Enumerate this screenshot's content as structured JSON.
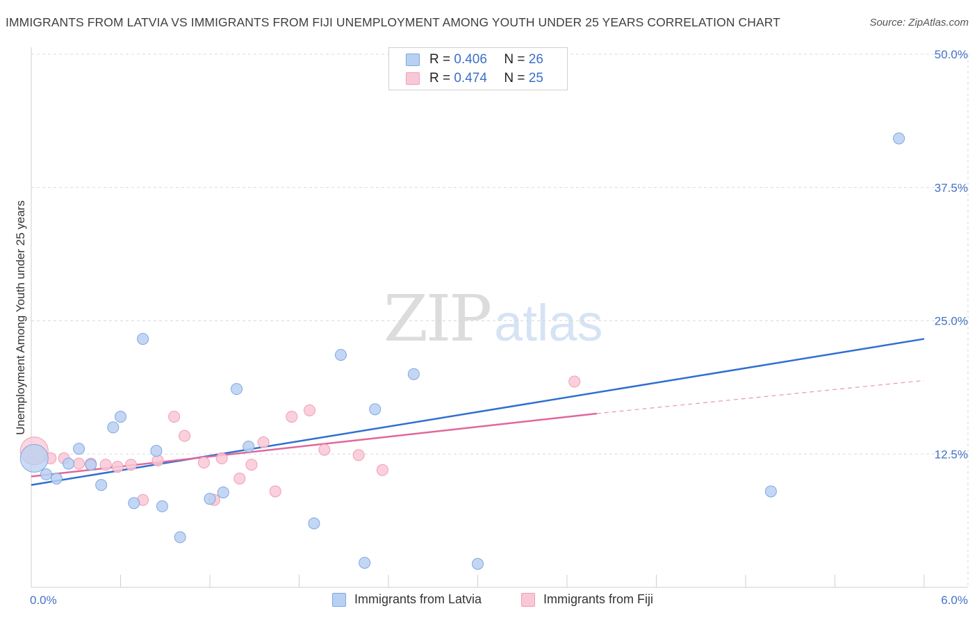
{
  "title": "IMMIGRANTS FROM LATVIA VS IMMIGRANTS FROM FIJI UNEMPLOYMENT AMONG YOUTH UNDER 25 YEARS CORRELATION CHART",
  "source": "Source: ZipAtlas.com",
  "watermark": {
    "zip": "ZIP",
    "atlas": "atlas"
  },
  "legend": {
    "latvia": {
      "r_label": "R = ",
      "r_value": "0.406",
      "n_label": "N = ",
      "n_value": "26"
    },
    "fiji": {
      "r_label": "R = ",
      "r_value": "0.474",
      "n_label": "N = ",
      "n_value": "25"
    }
  },
  "colors": {
    "latvia_fill": "#b8d0f2",
    "latvia_stroke": "#7ea7e0",
    "latvia_line": "#2f6fd0",
    "fiji_fill": "#f9c8d6",
    "fiji_stroke": "#ef9db5",
    "fiji_line": "#e0679a",
    "grid": "#d9d9d9",
    "tick_text": "#4472c4"
  },
  "chart_data": {
    "type": "scatter",
    "title": "IMMIGRANTS FROM LATVIA VS IMMIGRANTS FROM FIJI UNEMPLOYMENT AMONG YOUTH UNDER 25 YEARS CORRELATION CHART",
    "xlabel": "",
    "ylabel": "Unemployment Among Youth under 25 years",
    "xlim": [
      0,
      6
    ],
    "ylim": [
      0,
      50
    ],
    "x_tick_labels": [
      "0.0%",
      "6.0%"
    ],
    "y_ticks": [
      12.5,
      25.0,
      37.5,
      50.0
    ],
    "y_tick_labels": [
      "12.5%",
      "25.0%",
      "37.5%",
      "50.0%"
    ],
    "grid": true,
    "legend_position": "top-center",
    "series": [
      {
        "name": "Immigrants from Latvia",
        "r": 0.406,
        "n": 26,
        "trend": {
          "x": [
            0,
            6
          ],
          "y": [
            9.6,
            23.3
          ]
        },
        "points": [
          {
            "x": 0.02,
            "y": 12.1,
            "big": true
          },
          {
            "x": 0.1,
            "y": 10.6
          },
          {
            "x": 0.17,
            "y": 10.2
          },
          {
            "x": 0.25,
            "y": 11.6
          },
          {
            "x": 0.32,
            "y": 13.0
          },
          {
            "x": 0.4,
            "y": 11.5
          },
          {
            "x": 0.47,
            "y": 9.6
          },
          {
            "x": 0.55,
            "y": 15.0
          },
          {
            "x": 0.6,
            "y": 16.0
          },
          {
            "x": 0.69,
            "y": 7.9
          },
          {
            "x": 0.75,
            "y": 23.3
          },
          {
            "x": 0.84,
            "y": 12.8
          },
          {
            "x": 0.88,
            "y": 7.6
          },
          {
            "x": 1.0,
            "y": 4.7
          },
          {
            "x": 1.2,
            "y": 8.3
          },
          {
            "x": 1.29,
            "y": 8.9
          },
          {
            "x": 1.38,
            "y": 18.6
          },
          {
            "x": 1.46,
            "y": 13.2
          },
          {
            "x": 1.9,
            "y": 6.0
          },
          {
            "x": 2.08,
            "y": 21.8
          },
          {
            "x": 2.24,
            "y": 2.3
          },
          {
            "x": 2.31,
            "y": 16.7
          },
          {
            "x": 2.57,
            "y": 20.0
          },
          {
            "x": 3.0,
            "y": 2.2
          },
          {
            "x": 4.97,
            "y": 9.0
          },
          {
            "x": 5.83,
            "y": 42.1
          }
        ]
      },
      {
        "name": "Immigrants from Fiji",
        "r": 0.474,
        "n": 25,
        "trend": {
          "x": [
            0,
            3.8
          ],
          "y": [
            10.4,
            16.3
          ]
        },
        "trend_dashed": {
          "x": [
            3.8,
            6
          ],
          "y": [
            16.3,
            19.4
          ]
        },
        "points": [
          {
            "x": 0.02,
            "y": 12.8,
            "big": true
          },
          {
            "x": 0.13,
            "y": 12.1
          },
          {
            "x": 0.22,
            "y": 12.1
          },
          {
            "x": 0.32,
            "y": 11.6
          },
          {
            "x": 0.4,
            "y": 11.6
          },
          {
            "x": 0.5,
            "y": 11.5
          },
          {
            "x": 0.58,
            "y": 11.3
          },
          {
            "x": 0.67,
            "y": 11.5
          },
          {
            "x": 0.75,
            "y": 8.2
          },
          {
            "x": 0.85,
            "y": 11.9
          },
          {
            "x": 0.96,
            "y": 16.0
          },
          {
            "x": 1.03,
            "y": 14.2
          },
          {
            "x": 1.16,
            "y": 11.7
          },
          {
            "x": 1.23,
            "y": 8.2
          },
          {
            "x": 1.28,
            "y": 12.1
          },
          {
            "x": 1.4,
            "y": 10.2
          },
          {
            "x": 1.48,
            "y": 11.5
          },
          {
            "x": 1.56,
            "y": 13.6
          },
          {
            "x": 1.64,
            "y": 9.0
          },
          {
            "x": 1.75,
            "y": 16.0
          },
          {
            "x": 1.87,
            "y": 16.6
          },
          {
            "x": 1.97,
            "y": 12.9
          },
          {
            "x": 2.2,
            "y": 12.4
          },
          {
            "x": 2.36,
            "y": 11.0
          },
          {
            "x": 3.65,
            "y": 19.3
          }
        ]
      }
    ]
  },
  "bottom_legend": {
    "latvia": "Immigrants from Latvia",
    "fiji": "Immigrants from Fiji"
  }
}
